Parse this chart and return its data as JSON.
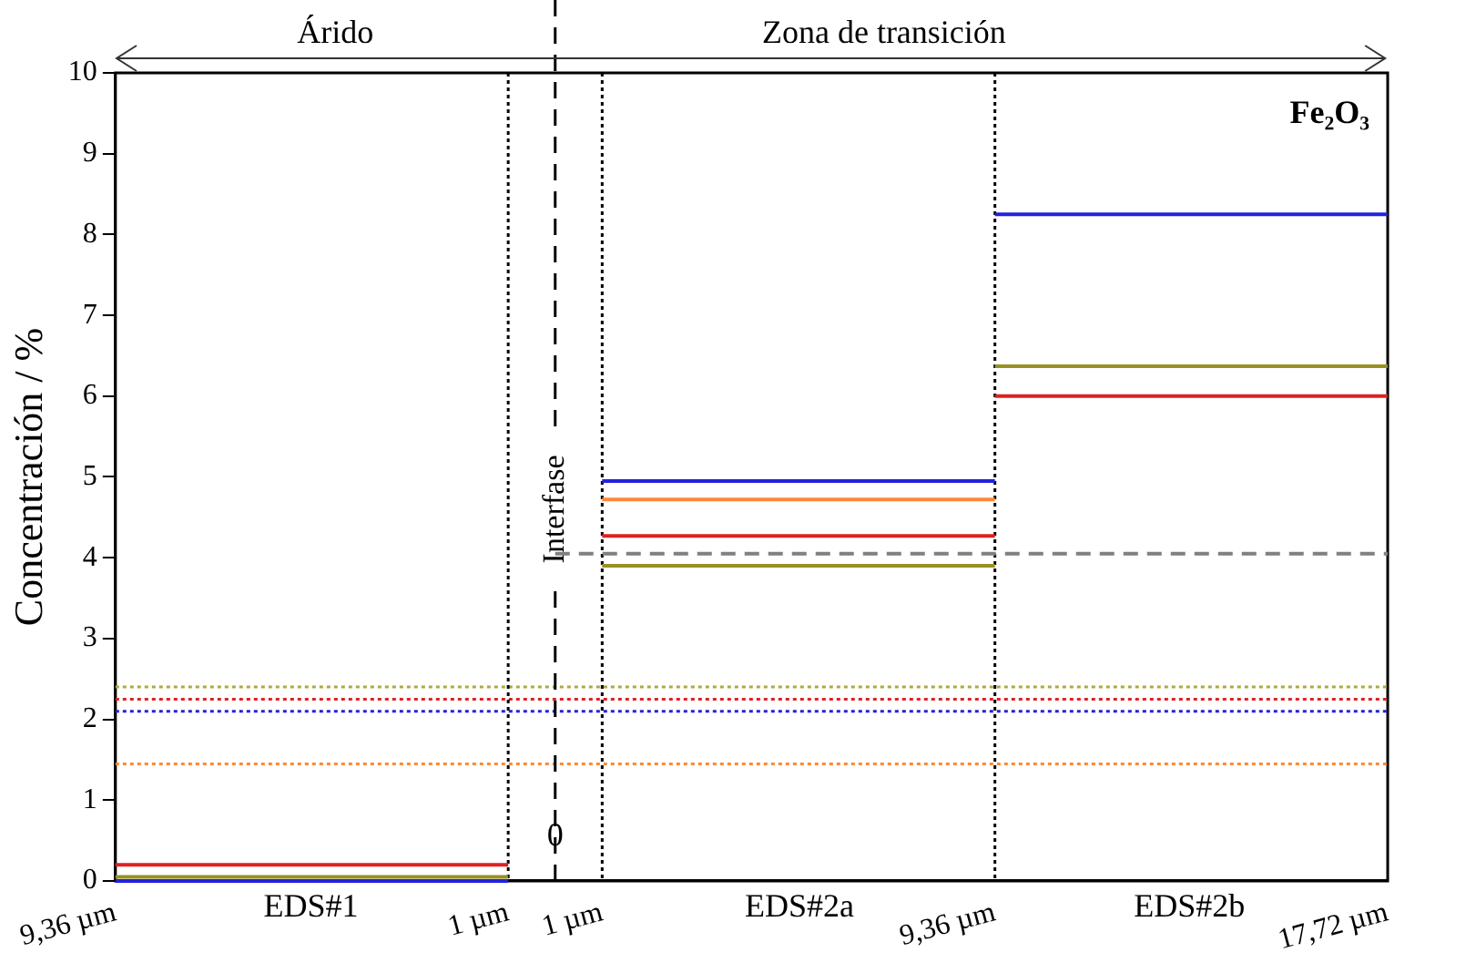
{
  "chart_data": {
    "type": "line",
    "ylabel": "Concentración / %",
    "xlim": [
      -9.36,
      17.72
    ],
    "ylim": [
      0,
      10
    ],
    "xticks": [
      {
        "value": -9.36,
        "label": "9,36 µm"
      },
      {
        "value": -1,
        "label": "1 µm"
      },
      {
        "value": 1,
        "label": "1 µm"
      },
      {
        "value": 9.36,
        "label": "9,36 µm"
      },
      {
        "value": 17.72,
        "label": "17,72 µm"
      }
    ],
    "yticks": [
      0,
      1,
      2,
      3,
      4,
      5,
      6,
      7,
      8,
      9,
      10
    ],
    "grid": false,
    "legend": false,
    "line_style": "solid",
    "series": [
      {
        "color": "#2222dd",
        "x": [
          -9.36,
          -1
        ],
        "values": [
          0,
          0
        ]
      },
      {
        "color": "#2222dd",
        "x": [
          1,
          9.36
        ],
        "values": [
          4.95,
          4.95
        ]
      },
      {
        "color": "#2222dd",
        "x": [
          9.36,
          17.72
        ],
        "values": [
          8.25,
          8.25
        ]
      },
      {
        "color": "#ff8833",
        "x": [
          1,
          9.36
        ],
        "values": [
          4.72,
          4.72
        ]
      },
      {
        "color": "#dd2222",
        "x": [
          -9.36,
          -1
        ],
        "values": [
          0.2,
          0.2
        ]
      },
      {
        "color": "#dd2222",
        "x": [
          1,
          9.36
        ],
        "values": [
          4.27,
          4.27
        ]
      },
      {
        "color": "#dd2222",
        "x": [
          9.36,
          17.72
        ],
        "values": [
          6.0,
          6.0
        ]
      },
      {
        "color": "#9a9022",
        "x": [
          -9.36,
          -1
        ],
        "values": [
          0.05,
          0.05
        ]
      },
      {
        "color": "#9a9022",
        "x": [
          1,
          9.36
        ],
        "values": [
          3.9,
          3.9
        ]
      },
      {
        "color": "#9a9022",
        "x": [
          9.36,
          17.72
        ],
        "values": [
          6.37,
          6.37
        ]
      },
      {
        "color": "#808080",
        "line_style": "dashed",
        "x": [
          0,
          17.72
        ],
        "values": [
          4.05,
          4.05
        ]
      }
    ],
    "ref_lines": [
      {
        "axis": "y",
        "value": 2.4,
        "color": "#aaaa44",
        "line_style": "dotted"
      },
      {
        "axis": "y",
        "value": 2.25,
        "color": "#dd2222",
        "line_style": "dotted"
      },
      {
        "axis": "y",
        "value": 2.1,
        "color": "#2222dd",
        "line_style": "dotted"
      },
      {
        "axis": "y",
        "value": 1.45,
        "color": "#ff8833",
        "line_style": "dotted"
      },
      {
        "axis": "x",
        "value": -1,
        "color": "#000000",
        "line_style": "dotted"
      },
      {
        "axis": "x",
        "value": 1,
        "color": "#000000",
        "line_style": "dotted"
      },
      {
        "axis": "x",
        "value": 9.36,
        "color": "#000000",
        "line_style": "dotted"
      },
      {
        "axis": "x",
        "value": 0,
        "color": "#000000",
        "line_style": "dashed",
        "label": "Interfase"
      }
    ],
    "annotations": [
      "Fe₂O₃",
      {
        "text": "0",
        "x": 0,
        "y": 0.55
      },
      "Árido",
      "Zona de transición",
      "EDS#1",
      "EDS#2a",
      "EDS#2b"
    ]
  }
}
